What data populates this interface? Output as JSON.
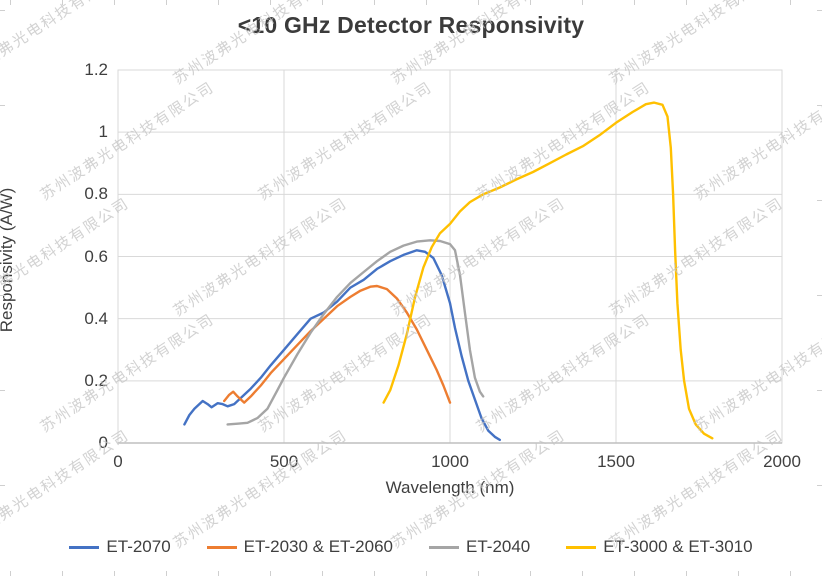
{
  "watermark": {
    "text": "苏州波弗光电科技有限公司"
  },
  "chart_data": {
    "type": "line",
    "title": "<10 GHz Detector Responsivity",
    "xlabel": "Wavelength (nm)",
    "ylabel": "Responsivity (A/W)",
    "xlim": [
      0,
      2000
    ],
    "ylim": [
      0,
      1.2
    ],
    "x_tick_labels": [
      "0",
      "500",
      "1000",
      "1500",
      "2000"
    ],
    "y_tick_labels": [
      "0",
      "0.2",
      "0.4",
      "0.6",
      "0.8",
      "1",
      "1.2"
    ],
    "grid": true,
    "legend_position": "bottom",
    "colors": {
      "grid": "#d9d9d9",
      "axis": "#bfbfbf",
      "text": "#3f3f3f"
    },
    "series": [
      {
        "name": "ET-2070",
        "color": "#4472C4",
        "points": [
          [
            200,
            0.06
          ],
          [
            215,
            0.09
          ],
          [
            230,
            0.11
          ],
          [
            255,
            0.135
          ],
          [
            270,
            0.125
          ],
          [
            282,
            0.115
          ],
          [
            300,
            0.128
          ],
          [
            315,
            0.125
          ],
          [
            330,
            0.118
          ],
          [
            350,
            0.125
          ],
          [
            375,
            0.15
          ],
          [
            400,
            0.175
          ],
          [
            430,
            0.21
          ],
          [
            460,
            0.25
          ],
          [
            500,
            0.3
          ],
          [
            540,
            0.35
          ],
          [
            580,
            0.4
          ],
          [
            620,
            0.42
          ],
          [
            660,
            0.455
          ],
          [
            700,
            0.5
          ],
          [
            740,
            0.525
          ],
          [
            780,
            0.56
          ],
          [
            820,
            0.585
          ],
          [
            860,
            0.605
          ],
          [
            900,
            0.62
          ],
          [
            925,
            0.615
          ],
          [
            950,
            0.595
          ],
          [
            975,
            0.54
          ],
          [
            1000,
            0.45
          ],
          [
            1015,
            0.37
          ],
          [
            1035,
            0.28
          ],
          [
            1055,
            0.2
          ],
          [
            1075,
            0.14
          ],
          [
            1095,
            0.08
          ],
          [
            1115,
            0.04
          ],
          [
            1135,
            0.02
          ],
          [
            1150,
            0.01
          ]
        ]
      },
      {
        "name": "ET-2030 & ET-2060",
        "color": "#ED7D31",
        "points": [
          [
            320,
            0.135
          ],
          [
            335,
            0.155
          ],
          [
            347,
            0.165
          ],
          [
            360,
            0.15
          ],
          [
            380,
            0.13
          ],
          [
            400,
            0.15
          ],
          [
            430,
            0.185
          ],
          [
            460,
            0.225
          ],
          [
            500,
            0.27
          ],
          [
            540,
            0.315
          ],
          [
            580,
            0.36
          ],
          [
            620,
            0.4
          ],
          [
            660,
            0.44
          ],
          [
            700,
            0.47
          ],
          [
            730,
            0.49
          ],
          [
            760,
            0.503
          ],
          [
            780,
            0.505
          ],
          [
            810,
            0.495
          ],
          [
            840,
            0.465
          ],
          [
            870,
            0.42
          ],
          [
            900,
            0.365
          ],
          [
            930,
            0.3
          ],
          [
            960,
            0.235
          ],
          [
            980,
            0.185
          ],
          [
            1000,
            0.13
          ]
        ]
      },
      {
        "name": "ET-2040",
        "color": "#A5A5A5",
        "points": [
          [
            330,
            0.06
          ],
          [
            360,
            0.062
          ],
          [
            390,
            0.065
          ],
          [
            420,
            0.08
          ],
          [
            450,
            0.11
          ],
          [
            480,
            0.17
          ],
          [
            500,
            0.21
          ],
          [
            540,
            0.285
          ],
          [
            580,
            0.355
          ],
          [
            620,
            0.415
          ],
          [
            660,
            0.47
          ],
          [
            700,
            0.515
          ],
          [
            740,
            0.55
          ],
          [
            780,
            0.585
          ],
          [
            820,
            0.615
          ],
          [
            860,
            0.635
          ],
          [
            900,
            0.648
          ],
          [
            940,
            0.652
          ],
          [
            970,
            0.65
          ],
          [
            1000,
            0.64
          ],
          [
            1015,
            0.62
          ],
          [
            1030,
            0.54
          ],
          [
            1045,
            0.42
          ],
          [
            1060,
            0.3
          ],
          [
            1075,
            0.21
          ],
          [
            1090,
            0.165
          ],
          [
            1100,
            0.15
          ]
        ]
      },
      {
        "name": "ET-3000 & ET-3010",
        "color": "#FFC000",
        "points": [
          [
            800,
            0.13
          ],
          [
            820,
            0.17
          ],
          [
            845,
            0.25
          ],
          [
            870,
            0.35
          ],
          [
            895,
            0.47
          ],
          [
            920,
            0.565
          ],
          [
            945,
            0.63
          ],
          [
            970,
            0.675
          ],
          [
            1000,
            0.705
          ],
          [
            1030,
            0.745
          ],
          [
            1060,
            0.775
          ],
          [
            1100,
            0.8
          ],
          [
            1150,
            0.822
          ],
          [
            1200,
            0.848
          ],
          [
            1250,
            0.872
          ],
          [
            1300,
            0.9
          ],
          [
            1350,
            0.928
          ],
          [
            1400,
            0.955
          ],
          [
            1450,
            0.99
          ],
          [
            1500,
            1.03
          ],
          [
            1550,
            1.065
          ],
          [
            1590,
            1.09
          ],
          [
            1615,
            1.095
          ],
          [
            1640,
            1.088
          ],
          [
            1655,
            1.05
          ],
          [
            1665,
            0.95
          ],
          [
            1672,
            0.8
          ],
          [
            1678,
            0.62
          ],
          [
            1685,
            0.45
          ],
          [
            1695,
            0.3
          ],
          [
            1705,
            0.2
          ],
          [
            1720,
            0.11
          ],
          [
            1740,
            0.06
          ],
          [
            1765,
            0.03
          ],
          [
            1790,
            0.015
          ]
        ]
      }
    ]
  }
}
